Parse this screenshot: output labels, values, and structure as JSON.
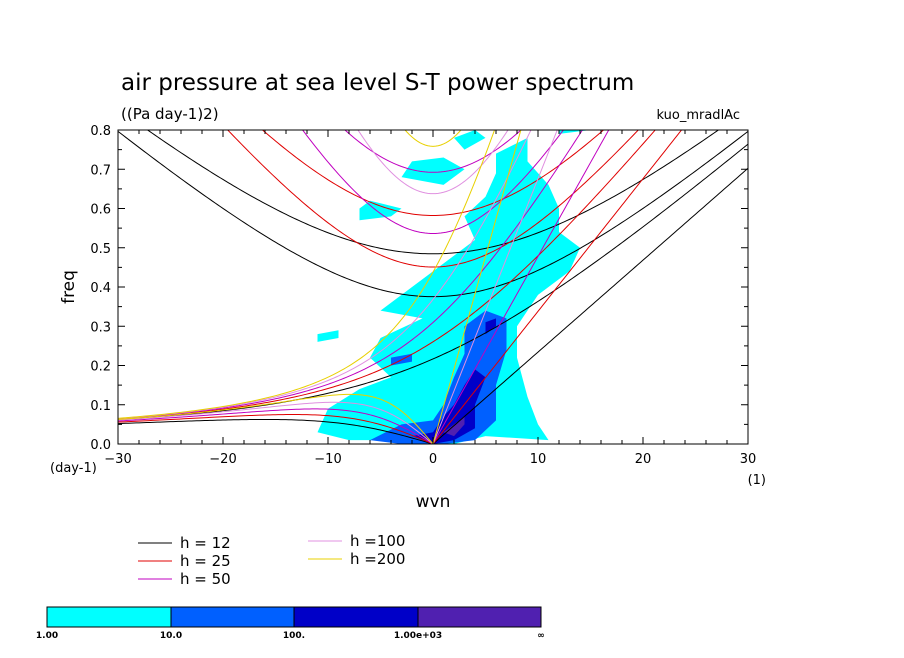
{
  "chart_data": {
    "type": "heatmap",
    "title": "air pressure at sea level S-T power spectrum",
    "units_label": "((Pa day-1)2)",
    "run_id": "kuo_mradlAc",
    "xlabel": "wvn",
    "ylabel": "freq",
    "x_unit_label": "(1)",
    "y_unit_label": "(day-1)",
    "xlim": [
      -30,
      30
    ],
    "ylim": [
      0,
      0.8
    ],
    "xticks": [
      -30,
      -20,
      -10,
      0,
      10,
      20,
      30
    ],
    "xtick_labels": [
      "−30",
      "−20",
      "−10",
      "0",
      "10",
      "20",
      "30"
    ],
    "yticks": [
      0,
      0.1,
      0.2,
      0.3,
      0.4,
      0.5,
      0.6,
      0.7,
      0.8
    ],
    "ytick_labels": [
      "0.0",
      "0.1",
      "0.2",
      "0.3",
      "0.4",
      "0.5",
      "0.6",
      "0.7",
      "0.8"
    ],
    "dispersion_curves": [
      {
        "label": "h = 12",
        "h": 12,
        "color": "#000000"
      },
      {
        "label": "h = 25",
        "h": 25,
        "color": "#e00000"
      },
      {
        "label": "h = 50",
        "h": 50,
        "color": "#c000c0"
      },
      {
        "label": "h =100",
        "h": 100,
        "color": "#e090e0"
      },
      {
        "label": "h =200",
        "h": 200,
        "color": "#e8d000"
      }
    ],
    "colorbar": {
      "levels": [
        "1.00",
        "10.0",
        "100.",
        "1.00e+03",
        "∞"
      ],
      "colors": [
        "#00ffff",
        "#0060ff",
        "#0000c8",
        "#5020b0"
      ]
    },
    "power_regions": [
      {
        "level": 1,
        "polygon": [
          [
            -11,
            0.03
          ],
          [
            -10,
            0.09
          ],
          [
            -7,
            0.14
          ],
          [
            -4,
            0.17
          ],
          [
            -6,
            0.22
          ],
          [
            -5,
            0.27
          ],
          [
            -1,
            0.32
          ],
          [
            -5,
            0.34
          ],
          [
            -3,
            0.38
          ],
          [
            1,
            0.46
          ],
          [
            4,
            0.52
          ],
          [
            3,
            0.58
          ],
          [
            5,
            0.63
          ],
          [
            6,
            0.69
          ],
          [
            6,
            0.74
          ],
          [
            9,
            0.78
          ],
          [
            9,
            0.72
          ],
          [
            11,
            0.66
          ],
          [
            12,
            0.6
          ],
          [
            12,
            0.54
          ],
          [
            14,
            0.5
          ],
          [
            13,
            0.44
          ],
          [
            10,
            0.38
          ],
          [
            8,
            0.3
          ],
          [
            8,
            0.22
          ],
          [
            9,
            0.12
          ],
          [
            10,
            0.05
          ],
          [
            11,
            0.01
          ],
          [
            5,
            0.02
          ],
          [
            2,
            0.0
          ],
          [
            -2,
            0.0
          ],
          [
            -5,
            0.01
          ],
          [
            -8,
            0.01
          ]
        ]
      },
      {
        "level": 1,
        "polygon": [
          [
            -7,
            0.57
          ],
          [
            -4,
            0.58
          ],
          [
            -3,
            0.6
          ],
          [
            -6,
            0.62
          ],
          [
            -7,
            0.6
          ]
        ]
      },
      {
        "level": 1,
        "polygon": [
          [
            -3,
            0.68
          ],
          [
            1,
            0.66
          ],
          [
            3,
            0.7
          ],
          [
            1,
            0.73
          ],
          [
            -2,
            0.72
          ]
        ]
      },
      {
        "level": 1,
        "polygon": [
          [
            3,
            0.75
          ],
          [
            5,
            0.78
          ],
          [
            4,
            0.8
          ],
          [
            2,
            0.78
          ]
        ]
      },
      {
        "level": 1,
        "polygon": [
          [
            -11,
            0.26
          ],
          [
            -9,
            0.27
          ],
          [
            -9,
            0.29
          ],
          [
            -11,
            0.28
          ]
        ]
      },
      {
        "level": 1,
        "polygon": [
          [
            12,
            0.79
          ],
          [
            15,
            0.8
          ],
          [
            12,
            0.8
          ]
        ]
      },
      {
        "level": 2,
        "polygon": [
          [
            -6,
            0.01
          ],
          [
            -3,
            0.05
          ],
          [
            0,
            0.06
          ],
          [
            1,
            0.1
          ],
          [
            2,
            0.17
          ],
          [
            3,
            0.23
          ],
          [
            3,
            0.3
          ],
          [
            5,
            0.34
          ],
          [
            7,
            0.32
          ],
          [
            7,
            0.24
          ],
          [
            6,
            0.15
          ],
          [
            6,
            0.06
          ],
          [
            4,
            0.01
          ],
          [
            1,
            0.0
          ],
          [
            -3,
            0.0
          ]
        ]
      },
      {
        "level": 2,
        "polygon": [
          [
            -4,
            0.2
          ],
          [
            -2,
            0.21
          ],
          [
            -2,
            0.23
          ],
          [
            -4,
            0.22
          ]
        ]
      },
      {
        "level": 3,
        "polygon": [
          [
            -2,
            0.02
          ],
          [
            0,
            0.03
          ],
          [
            1,
            0.07
          ],
          [
            2,
            0.1
          ],
          [
            3,
            0.15
          ],
          [
            4,
            0.19
          ],
          [
            5,
            0.17
          ],
          [
            4,
            0.1
          ],
          [
            4,
            0.04
          ],
          [
            2,
            0.01
          ],
          [
            0,
            0.0
          ]
        ]
      },
      {
        "level": 3,
        "polygon": [
          [
            5,
            0.28
          ],
          [
            6,
            0.3
          ],
          [
            6,
            0.32
          ],
          [
            5,
            0.31
          ]
        ]
      },
      {
        "level": 4,
        "polygon": [
          [
            1,
            0.03
          ],
          [
            2,
            0.05
          ],
          [
            3,
            0.07
          ],
          [
            3,
            0.05
          ],
          [
            2,
            0.02
          ]
        ]
      }
    ]
  }
}
